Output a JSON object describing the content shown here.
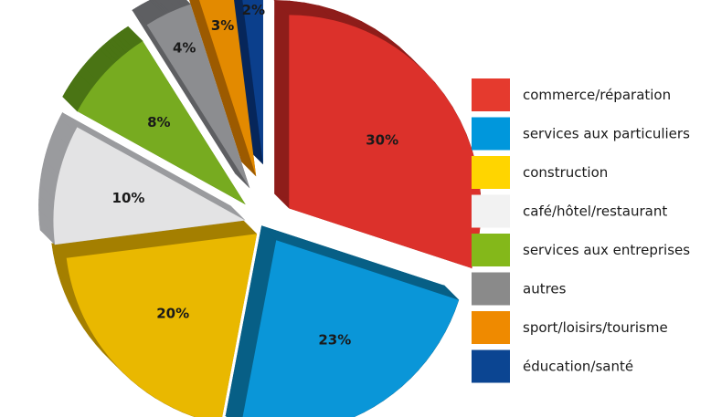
{
  "chart_data": {
    "type": "pie",
    "title": "",
    "legend_position": "right",
    "slices": [
      {
        "label": "commerce/réparation",
        "value": 30,
        "value_label": "30%",
        "color": "#dc312b",
        "side_color": "#8e1d1a"
      },
      {
        "label": "services aux particuliers",
        "value": 23,
        "value_label": "23%",
        "color": "#0a96d8",
        "side_color": "#075f86"
      },
      {
        "label": "construction",
        "value": 20,
        "value_label": "20%",
        "color": "#e9b800",
        "side_color": "#a47f00"
      },
      {
        "label": "café/hôtel/restaurant",
        "value": 10,
        "value_label": "10%",
        "color": "#e3e3e4",
        "side_color": "#9a9b9e"
      },
      {
        "label": "services aux entreprises",
        "value": 8,
        "value_label": "8%",
        "color": "#77ab20",
        "side_color": "#4a7414"
      },
      {
        "label": "autres",
        "value": 4,
        "value_label": "4%",
        "color": "#8c8d90",
        "side_color": "#5e5f62"
      },
      {
        "label": "sport/loisirs/tourisme",
        "value": 3,
        "value_label": "3%",
        "color": "#e38a00",
        "side_color": "#9c5a00"
      },
      {
        "label": "éducation/santé",
        "value": 2,
        "value_label": "2%",
        "color": "#0b3f8c",
        "side_color": "#06265a"
      }
    ],
    "legend": [
      {
        "label": "commerce/réparation",
        "color": "#e53a2e"
      },
      {
        "label": "services aux particuliers",
        "color": "#0097dc"
      },
      {
        "label": "construction",
        "color": "#ffd500"
      },
      {
        "label": "café/hôtel/restaurant",
        "color": "#f2f2f2"
      },
      {
        "label": "services aux entreprises",
        "color": "#84b81a"
      },
      {
        "label": "autres",
        "color": "#8a8a8a"
      },
      {
        "label": "sport/loisirs/tourisme",
        "color": "#ef8a00"
      },
      {
        "label": "éducation/santé",
        "color": "#0b4592"
      }
    ]
  }
}
